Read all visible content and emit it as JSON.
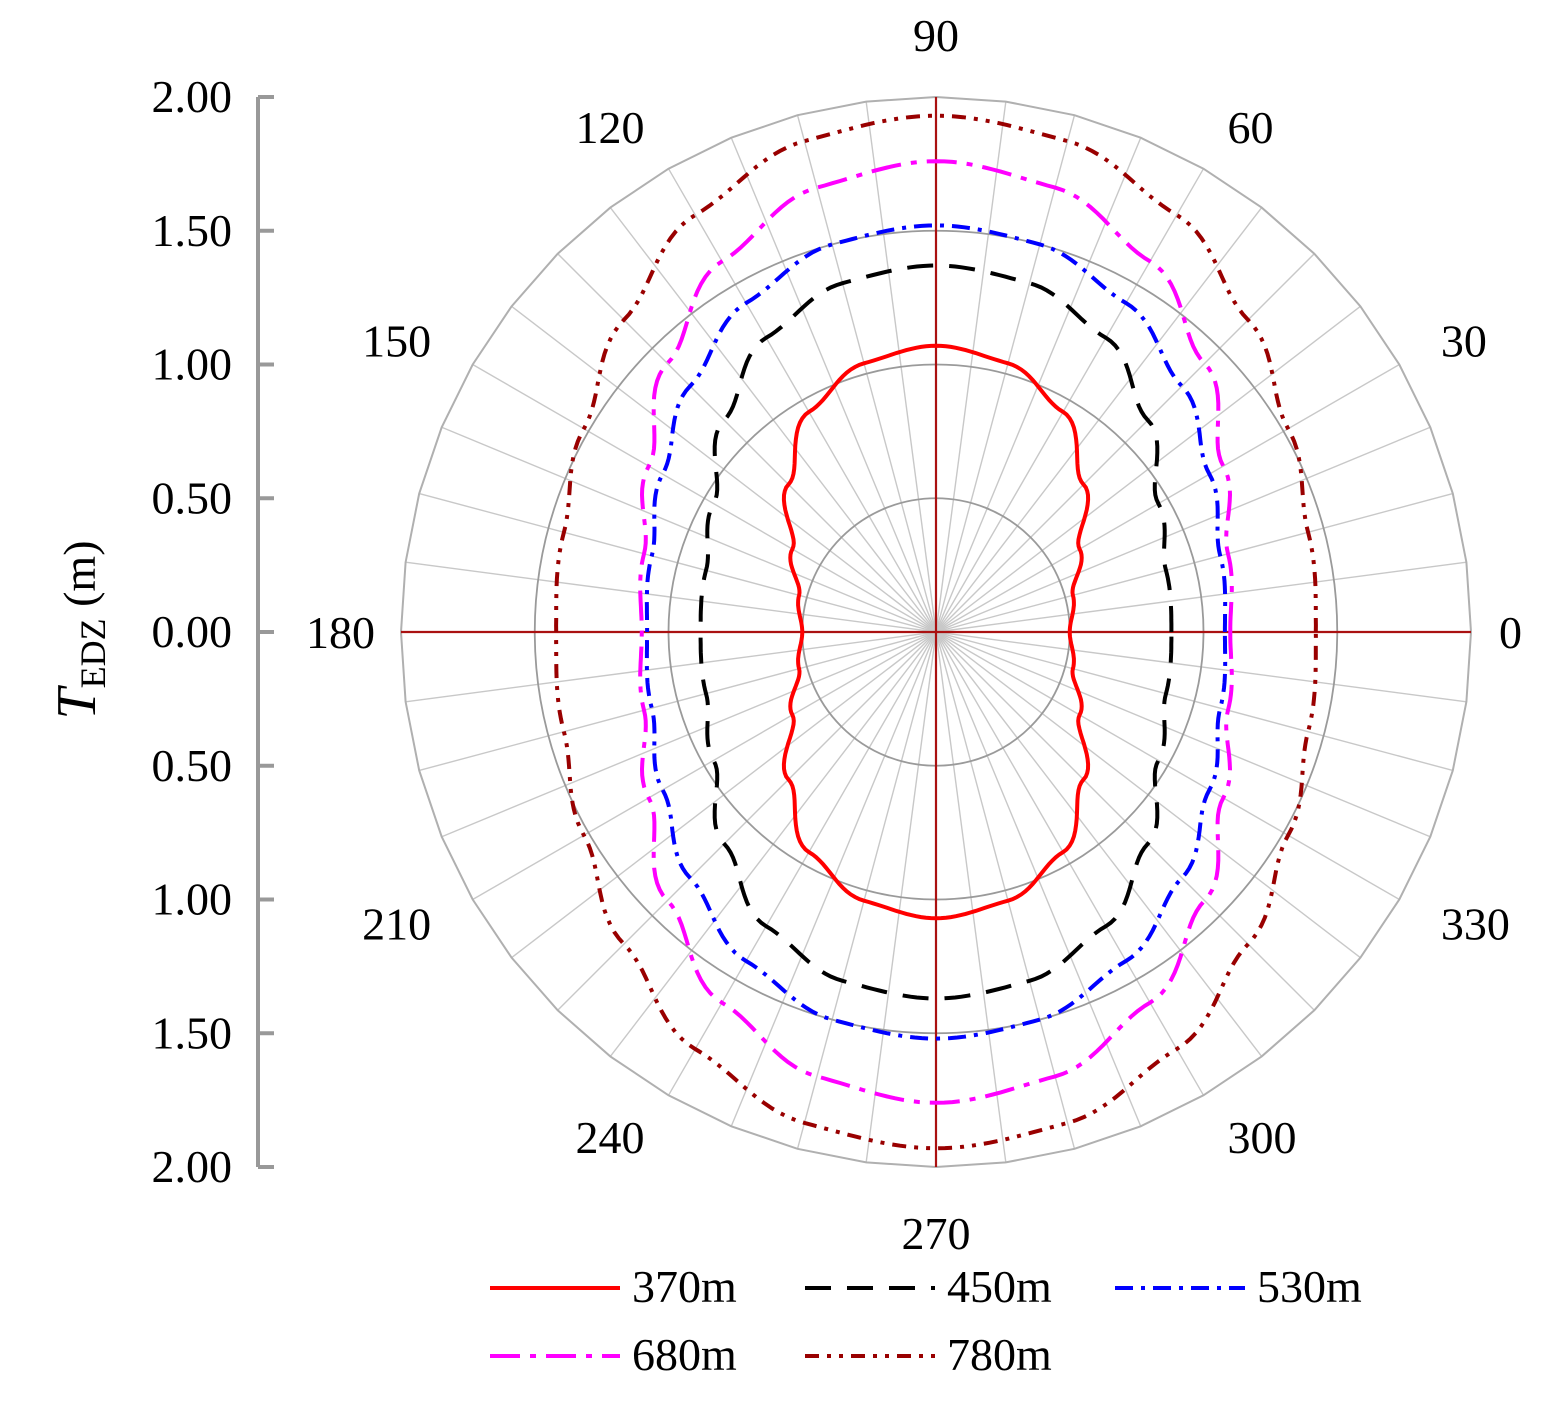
{
  "chart_data": {
    "type": "polar-line",
    "title": "",
    "ylabel": {
      "symbol": "T",
      "subscript": "EDZ",
      "unit": " (m)"
    },
    "radial_axis": {
      "min": 0,
      "max": 2.0,
      "ticks": [
        0.5,
        1.0,
        1.5,
        2.0
      ],
      "tick_labels_upper": [
        "2.00",
        "1.50",
        "1.00",
        "0.50",
        "0.00"
      ],
      "tick_labels_lower": [
        "0.50",
        "1.00",
        "1.50",
        "2.00"
      ]
    },
    "angular_axis": {
      "unit": "degrees",
      "spoke_step": 7.5,
      "labeled_angles": [
        0,
        30,
        60,
        90,
        120,
        150,
        180,
        210,
        240,
        270,
        300,
        330
      ],
      "labels": [
        "0",
        "30",
        "60",
        "90",
        "120",
        "150",
        "180",
        "210",
        "240",
        "270",
        "300",
        "330"
      ]
    },
    "series": [
      {
        "name": "370m",
        "color": "#ff0000",
        "dash": "solid",
        "theta": [
          0,
          15,
          30,
          45,
          60,
          75,
          90
        ],
        "r": [
          0.5,
          0.53,
          0.62,
          0.78,
          0.95,
          1.04,
          1.07
        ]
      },
      {
        "name": "450m",
        "color": "#000000",
        "dash": "dashed",
        "theta": [
          0,
          15,
          30,
          45,
          60,
          75,
          90
        ],
        "r": [
          0.88,
          0.89,
          0.96,
          1.12,
          1.27,
          1.35,
          1.37
        ]
      },
      {
        "name": "530m",
        "color": "#0000ff",
        "dash": "dash-dot",
        "theta": [
          0,
          15,
          30,
          45,
          60,
          75,
          90
        ],
        "r": [
          1.08,
          1.1,
          1.18,
          1.3,
          1.42,
          1.5,
          1.52
        ]
      },
      {
        "name": "680m",
        "color": "#ff00ff",
        "dash": "long-dash-dot",
        "theta": [
          0,
          15,
          30,
          45,
          60,
          75,
          90
        ],
        "r": [
          1.1,
          1.13,
          1.24,
          1.42,
          1.6,
          1.72,
          1.76
        ]
      },
      {
        "name": "780m",
        "color": "#990000",
        "dash": "dash-dot-dot",
        "theta": [
          0,
          15,
          30,
          45,
          60,
          75,
          90
        ],
        "r": [
          1.42,
          1.44,
          1.52,
          1.65,
          1.8,
          1.9,
          1.93
        ]
      }
    ],
    "symmetry": "curves mirrored about both 0-180 and 90-270 axes",
    "legend": {
      "position": "bottom",
      "entries": [
        "370m",
        "450m",
        "530m",
        "680m",
        "780m"
      ]
    },
    "colors": {
      "axis_cross": "#aa1111",
      "grid": "#9a9a9a",
      "spoke": "#c8c8c8",
      "outer": "#b0b0b0",
      "y_axis": "#999999"
    }
  }
}
